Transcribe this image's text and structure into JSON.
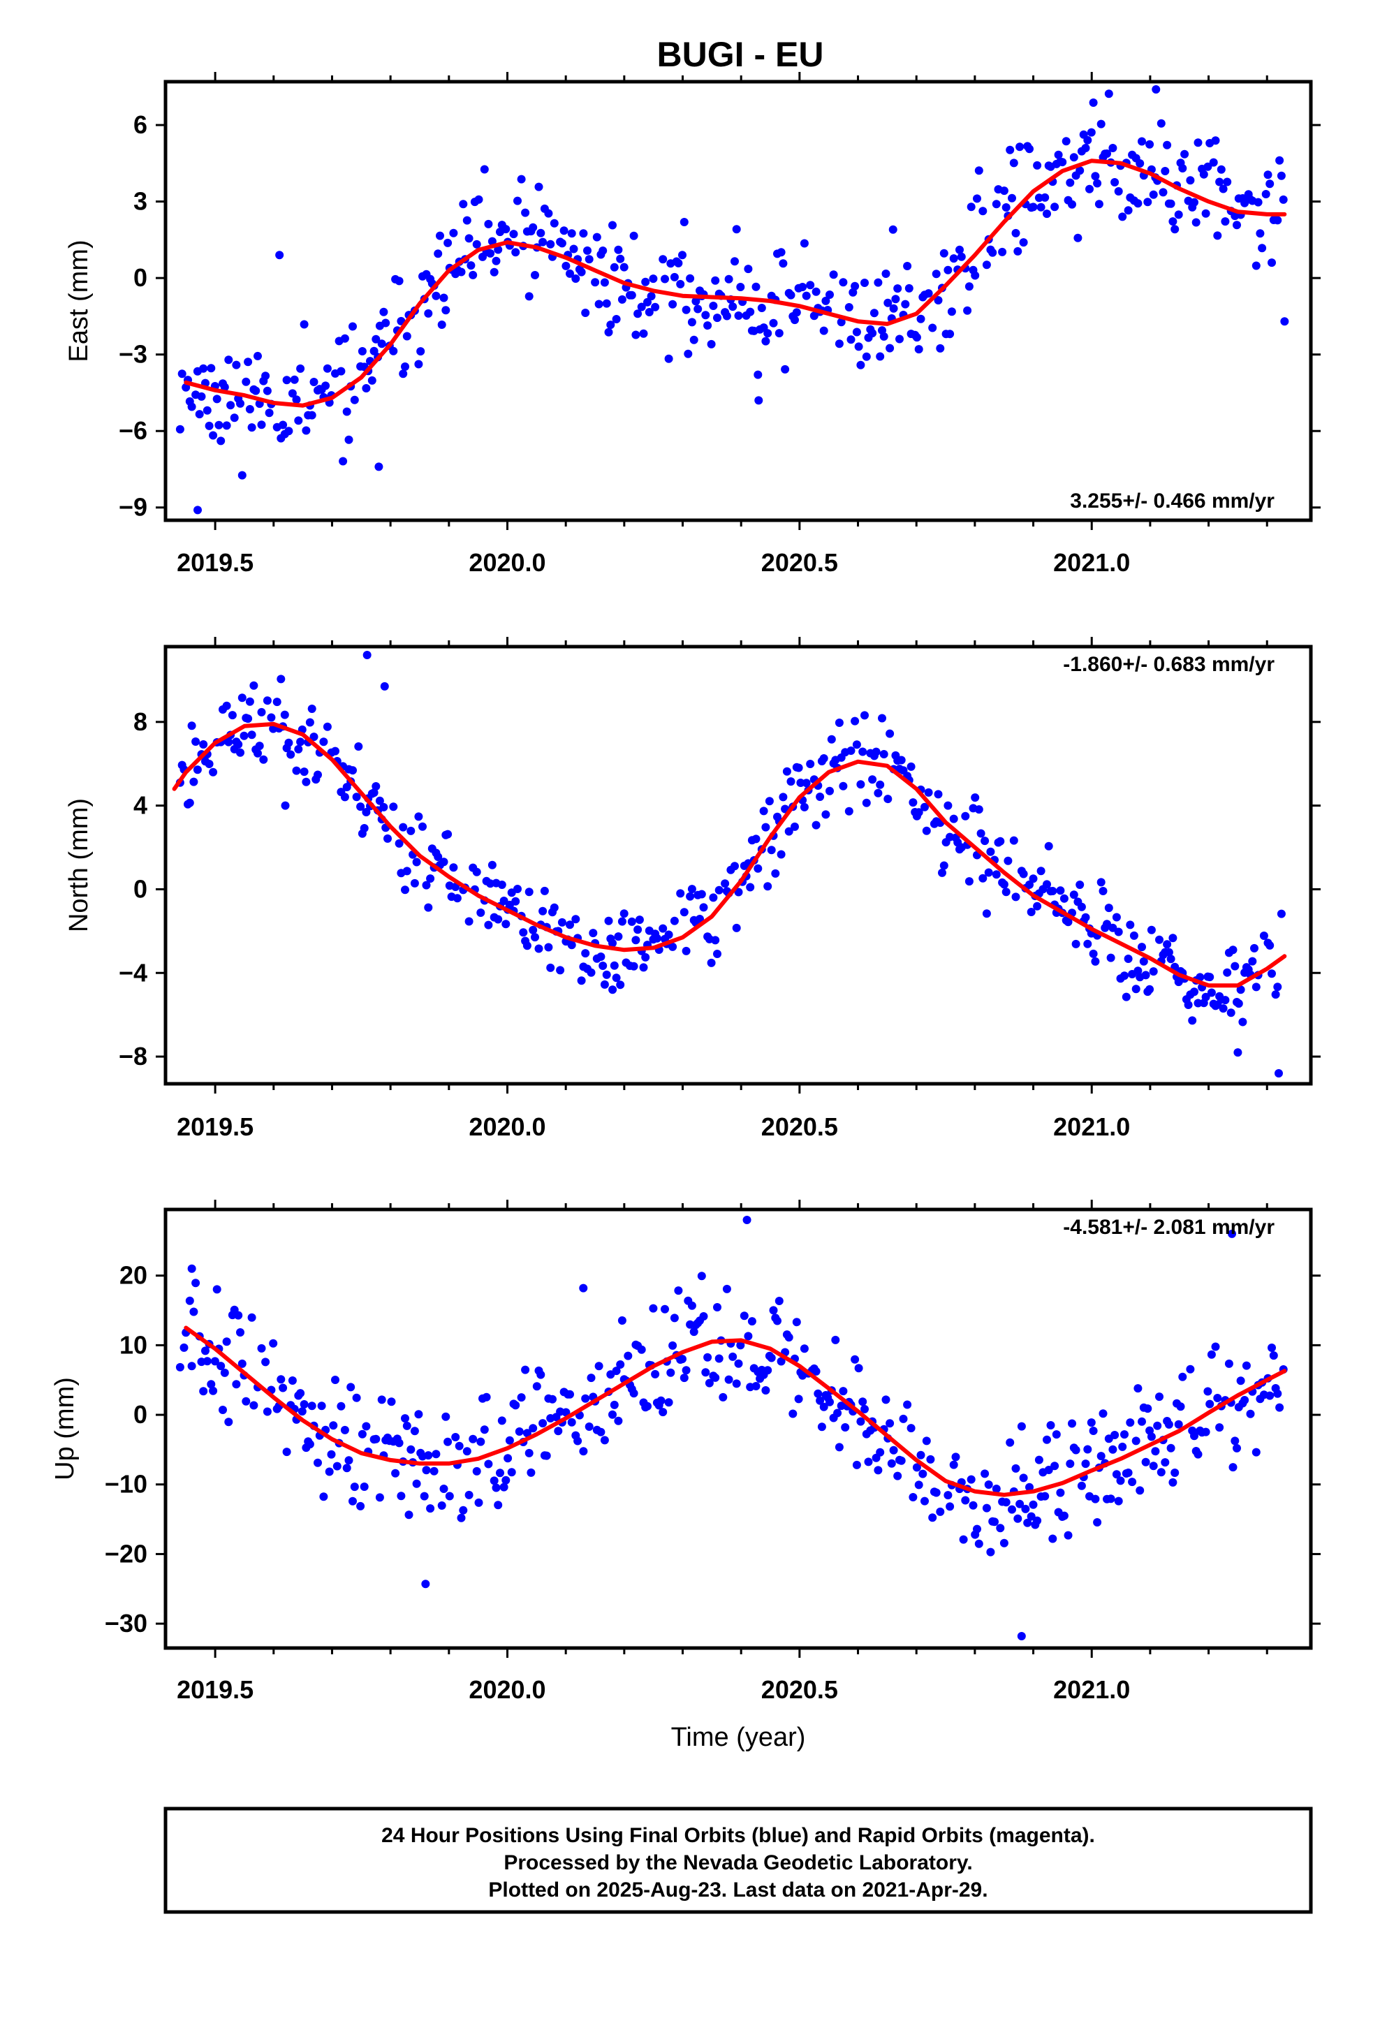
{
  "title": "BUGI - EU",
  "footer": {
    "line1": "24 Hour Positions Using Final Orbits (blue) and Rapid Orbits (magenta).",
    "line2": "Processed by the Nevada Geodetic Laboratory.",
    "line3": "Plotted on 2025-Aug-23. Last data on 2021-Apr-29."
  },
  "colors": {
    "points": "#0000ff",
    "fit": "#ff0000",
    "frame": "#000000"
  },
  "chart_data": [
    {
      "type": "scatter",
      "title": "BUGI - EU",
      "ylabel": "East (mm)",
      "xlabel": "",
      "xlim": [
        2019.415,
        2021.375
      ],
      "ylim": [
        -9.5,
        7.7
      ],
      "xticks": [
        "2019.5",
        "2020.0",
        "2020.5",
        "2021.0"
      ],
      "yticks": [
        "6",
        "3",
        "0",
        "-3",
        "-6",
        "-9"
      ],
      "annotation": "3.255+/- 0.466 mm/yr",
      "annotation_position": "bottom-right",
      "fit_curve": {
        "x": [
          2019.45,
          2019.5,
          2019.55,
          2019.6,
          2019.65,
          2019.7,
          2019.75,
          2019.8,
          2019.85,
          2019.9,
          2019.95,
          2020.0,
          2020.05,
          2020.1,
          2020.15,
          2020.2,
          2020.25,
          2020.3,
          2020.35,
          2020.4,
          2020.45,
          2020.5,
          2020.55,
          2020.6,
          2020.65,
          2020.7,
          2020.75,
          2020.8,
          2020.85,
          2020.9,
          2020.95,
          2021.0,
          2021.05,
          2021.1,
          2021.15,
          2021.2,
          2021.25,
          2021.3,
          2021.33
        ],
        "y": [
          -4.1,
          -4.4,
          -4.6,
          -4.9,
          -5.0,
          -4.7,
          -3.9,
          -2.6,
          -1.0,
          0.3,
          1.1,
          1.4,
          1.2,
          0.8,
          0.3,
          -0.2,
          -0.5,
          -0.7,
          -0.75,
          -0.8,
          -0.9,
          -1.1,
          -1.4,
          -1.7,
          -1.8,
          -1.4,
          -0.3,
          0.9,
          2.2,
          3.4,
          4.2,
          4.6,
          4.5,
          4.1,
          3.5,
          3.0,
          2.6,
          2.5,
          2.5
        ]
      },
      "outliers": [
        {
          "x": 2019.47,
          "y": -9.1
        },
        {
          "x": 2019.61,
          "y": 0.9
        },
        {
          "x": 2019.78,
          "y": -7.4
        },
        {
          "x": 2020.43,
          "y": -4.8
        },
        {
          "x": 2020.66,
          "y": 1.9
        },
        {
          "x": 2021.11,
          "y": 7.4
        },
        {
          "x": 2021.33,
          "y": -1.7
        }
      ],
      "num_points": 570,
      "noise": 1.15,
      "seed": 11
    },
    {
      "type": "scatter",
      "ylabel": "North (mm)",
      "xlabel": "",
      "xlim": [
        2019.415,
        2021.375
      ],
      "ylim": [
        -9.3,
        11.6
      ],
      "xticks": [
        "2019.5",
        "2020.0",
        "2020.5",
        "2021.0"
      ],
      "yticks": [
        "8",
        "4",
        "0",
        "-4",
        "-8"
      ],
      "annotation": "-1.860+/- 0.683 mm/yr",
      "annotation_position": "top-right",
      "fit_curve": {
        "x": [
          2019.43,
          2019.45,
          2019.5,
          2019.55,
          2019.6,
          2019.65,
          2019.7,
          2019.75,
          2019.8,
          2019.85,
          2019.9,
          2019.95,
          2020.0,
          2020.05,
          2020.1,
          2020.15,
          2020.2,
          2020.25,
          2020.3,
          2020.35,
          2020.4,
          2020.45,
          2020.5,
          2020.55,
          2020.6,
          2020.65,
          2020.7,
          2020.75,
          2020.8,
          2020.85,
          2020.9,
          2020.95,
          2021.0,
          2021.05,
          2021.1,
          2021.15,
          2021.2,
          2021.25,
          2021.3,
          2021.33
        ],
        "y": [
          4.8,
          5.6,
          7.0,
          7.8,
          7.9,
          7.4,
          6.2,
          4.6,
          3.0,
          1.6,
          0.6,
          -0.3,
          -1.0,
          -1.7,
          -2.3,
          -2.7,
          -2.9,
          -2.8,
          -2.3,
          -1.3,
          0.4,
          2.5,
          4.4,
          5.6,
          6.1,
          5.9,
          4.8,
          3.2,
          2.0,
          0.8,
          -0.3,
          -1.1,
          -1.9,
          -2.6,
          -3.3,
          -4.1,
          -4.6,
          -4.6,
          -3.8,
          -3.2
        ]
      },
      "outliers": [
        {
          "x": 2019.76,
          "y": 11.2
        },
        {
          "x": 2019.79,
          "y": 9.7
        },
        {
          "x": 2019.62,
          "y": 4.0
        },
        {
          "x": 2020.18,
          "y": -4.8
        },
        {
          "x": 2021.32,
          "y": -8.8
        },
        {
          "x": 2021.25,
          "y": -7.8
        }
      ],
      "num_points": 570,
      "noise": 1.05,
      "seed": 23
    },
    {
      "type": "scatter",
      "ylabel": "Up (mm)",
      "xlabel": "Time (year)",
      "xlim": [
        2019.415,
        2021.375
      ],
      "ylim": [
        -33.5,
        29.5
      ],
      "xticks": [
        "2019.5",
        "2020.0",
        "2020.5",
        "2021.0"
      ],
      "yticks": [
        "20",
        "10",
        "0",
        "-10",
        "-20",
        "-30"
      ],
      "annotation": "-4.581+/- 2.081 mm/yr",
      "annotation_position": "top-right",
      "fit_curve": {
        "x": [
          2019.45,
          2019.5,
          2019.55,
          2019.6,
          2019.65,
          2019.7,
          2019.75,
          2019.8,
          2019.85,
          2019.9,
          2019.95,
          2020.0,
          2020.05,
          2020.1,
          2020.15,
          2020.2,
          2020.25,
          2020.3,
          2020.35,
          2020.4,
          2020.45,
          2020.5,
          2020.55,
          2020.6,
          2020.65,
          2020.7,
          2020.75,
          2020.8,
          2020.85,
          2020.9,
          2020.95,
          2021.0,
          2021.05,
          2021.1,
          2021.15,
          2021.2,
          2021.25,
          2021.3,
          2021.33
        ],
        "y": [
          12.5,
          9.5,
          6.0,
          2.5,
          -0.8,
          -3.5,
          -5.5,
          -6.5,
          -7.0,
          -7.0,
          -6.3,
          -4.8,
          -2.8,
          -0.5,
          2.0,
          4.5,
          7.0,
          9.0,
          10.5,
          10.7,
          9.5,
          7.0,
          3.8,
          0.5,
          -3.0,
          -6.5,
          -9.5,
          -11.0,
          -11.5,
          -11.0,
          -9.8,
          -8.0,
          -6.3,
          -4.3,
          -2.3,
          0.3,
          2.8,
          5.0,
          6.3
        ]
      },
      "outliers": [
        {
          "x": 2019.46,
          "y": 21.0
        },
        {
          "x": 2019.86,
          "y": -24.3
        },
        {
          "x": 2020.13,
          "y": 18.2
        },
        {
          "x": 2020.41,
          "y": 28.0
        },
        {
          "x": 2020.88,
          "y": -31.8
        },
        {
          "x": 2021.24,
          "y": 26.0
        }
      ],
      "num_points": 570,
      "noise": 4.2,
      "seed": 37
    }
  ]
}
